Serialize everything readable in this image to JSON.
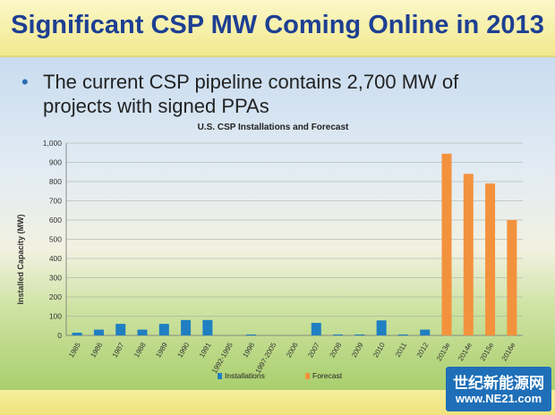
{
  "slide": {
    "title": "Significant CSP MW Coming Online in 2013",
    "bullet": "The current CSP pipeline contains 2,700 MW of projects with signed PPAs"
  },
  "watermark": {
    "line1": "世纪新能源网",
    "line2": "www.NE21.com"
  },
  "colors": {
    "title": "#1d3f93",
    "installations": "#1f7fc1",
    "forecast": "#f3923d"
  },
  "chart_data": {
    "type": "bar",
    "title": "U.S. CSP Installations and Forecast",
    "xlabel": "",
    "ylabel": "Installed Capacity (MW)",
    "ylim": [
      0,
      1000
    ],
    "yticks": [
      "0",
      "100",
      "200",
      "300",
      "400",
      "500",
      "600",
      "700",
      "800",
      "900",
      "1,000"
    ],
    "grid": true,
    "legend_position": "bottom",
    "categories": [
      "1985",
      "1986",
      "1987",
      "1988",
      "1989",
      "1990",
      "1991",
      "1992-1995",
      "1996",
      "1997-2005",
      "2006",
      "2007",
      "2008",
      "2009",
      "2010",
      "2011",
      "2012",
      "2013e",
      "2014e",
      "2015e",
      "2016e"
    ],
    "series": [
      {
        "name": "Installations",
        "color": "#1f7fc1",
        "values": [
          14,
          30,
          60,
          30,
          60,
          80,
          80,
          0,
          5,
          0,
          0,
          65,
          5,
          5,
          78,
          5,
          30,
          null,
          null,
          null,
          null
        ]
      },
      {
        "name": "Forecast",
        "color": "#f3923d",
        "values": [
          null,
          null,
          null,
          null,
          null,
          null,
          null,
          null,
          null,
          null,
          null,
          null,
          null,
          null,
          null,
          null,
          null,
          945,
          840,
          790,
          600
        ]
      }
    ]
  }
}
